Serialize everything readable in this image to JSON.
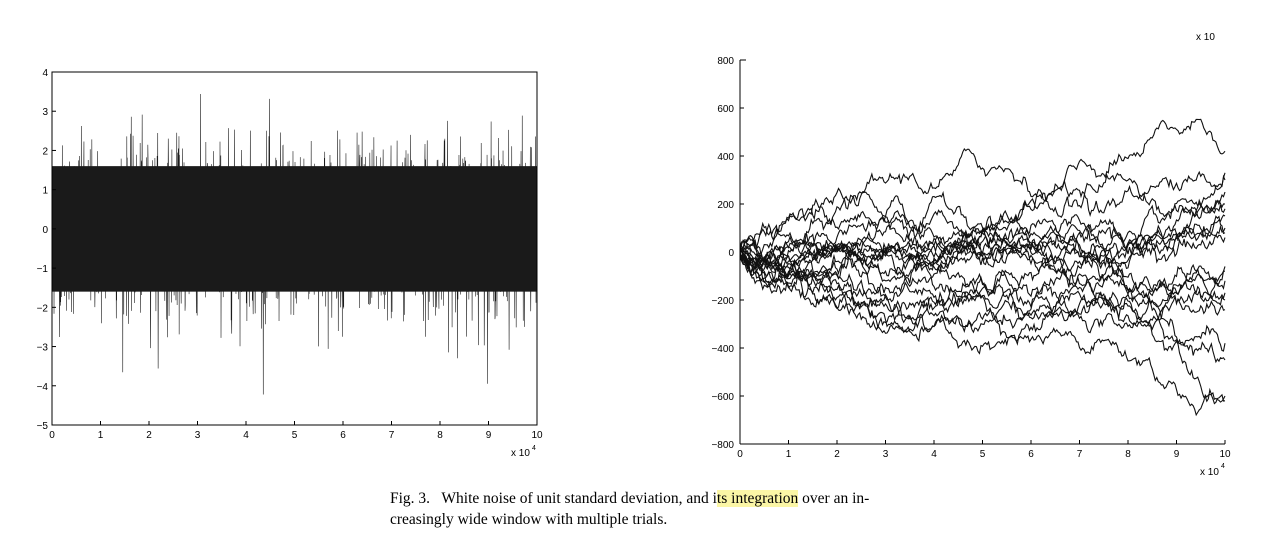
{
  "caption": {
    "fig_label": "Fig. 3.",
    "text_before": "White noise of unit standard deviation, and i",
    "highlighted": "ts integration",
    "text_after": " over an in-creasingly wide window with multiple trials."
  },
  "chart_data": [
    {
      "type": "line",
      "title": "",
      "xlabel": "",
      "ylabel": "",
      "description_series": "white noise, unit standard deviation",
      "xlim": [
        0,
        100000
      ],
      "ylim": [
        -5,
        4
      ],
      "x_ticks": [
        0,
        1,
        2,
        3,
        4,
        5,
        6,
        7,
        8,
        9,
        10
      ],
      "x_multiplier": "x 10",
      "x_multiplier_exp": "4",
      "y_ticks": [
        4,
        3,
        2,
        1,
        0,
        -1,
        -2,
        -3,
        -4,
        -5
      ],
      "y_tick_labels": [
        "4",
        "3",
        "2",
        "1",
        "0",
        "−1",
        "−2",
        "−3",
        "−4",
        "−5"
      ],
      "noise_std": 1,
      "series": [
        {
          "samples": 100000
        }
      ],
      "colors": {
        "line": "#1a1a1a"
      }
    },
    {
      "type": "line",
      "title": "",
      "xlabel": "",
      "ylabel": "",
      "xlim": [
        0,
        100000
      ],
      "ylim": [
        -800,
        800
      ],
      "x_ticks": [
        0,
        1,
        2,
        3,
        4,
        5,
        6,
        7,
        8,
        9,
        10
      ],
      "x_multiplier": "x 10",
      "x_multiplier_exp": "4",
      "y_ticks": [
        800,
        600,
        400,
        200,
        0,
        -200,
        -400,
        -600,
        -800
      ],
      "y_tick_labels": [
        "800",
        "600",
        "400",
        "200",
        "0",
        "−200",
        "−400",
        "−600",
        "−800"
      ],
      "top_cut_label": "x 10",
      "trials": 20,
      "series_end_values": [
        420,
        300,
        200,
        150,
        60,
        -80,
        -120,
        -200,
        -380,
        -600,
        -620,
        330,
        180,
        -170,
        80,
        -60,
        250,
        -240,
        -450,
        100
      ],
      "colors": {
        "line": "#111111"
      }
    }
  ]
}
